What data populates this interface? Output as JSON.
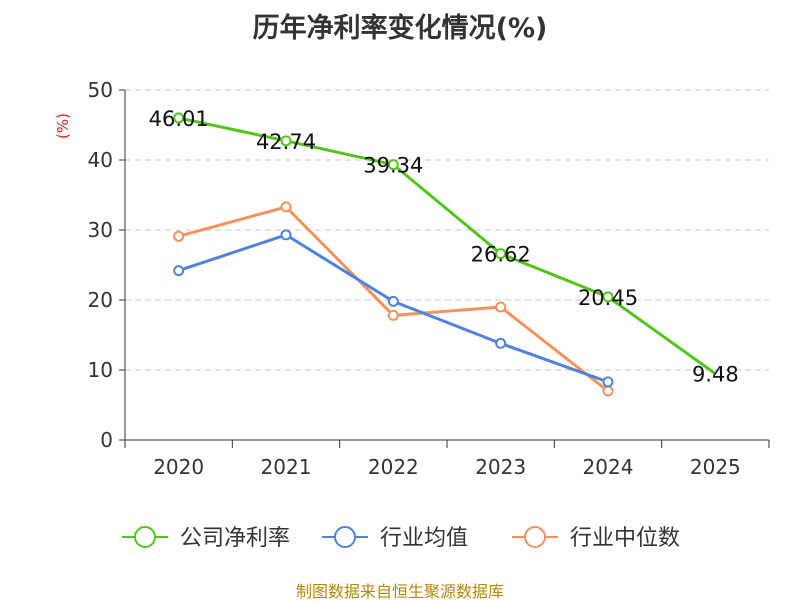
{
  "chart_data": {
    "type": "line",
    "title": "历年净利率变化情况(%)",
    "ylabel": "(%)",
    "xlabel": "",
    "categories": [
      "2020",
      "2021",
      "2022",
      "2023",
      "2024",
      "2025"
    ],
    "ylim": [
      0,
      50
    ],
    "yticks": [
      0,
      10,
      20,
      30,
      40,
      50
    ],
    "grid": true,
    "legend_position": "bottom",
    "series": [
      {
        "name": "公司净利率",
        "color": "#52c41a",
        "values": [
          46.01,
          42.74,
          39.34,
          26.62,
          20.45,
          9.48
        ],
        "show_labels": true
      },
      {
        "name": "行业均值",
        "color": "#4f81e0",
        "values": [
          24.2,
          29.3,
          19.8,
          13.8,
          8.3,
          null
        ],
        "show_labels": false
      },
      {
        "name": "行业中位数",
        "color": "#f5915c",
        "values": [
          29.1,
          33.3,
          17.8,
          19.0,
          7.0,
          null
        ],
        "show_labels": false
      }
    ]
  },
  "source": "制图数据来自恒生聚源数据库"
}
